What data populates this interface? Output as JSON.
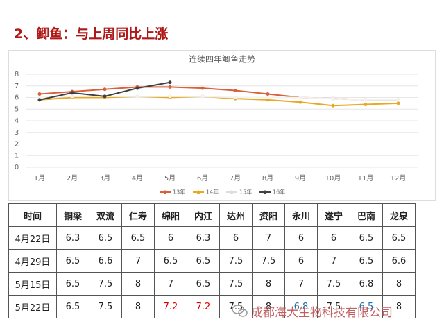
{
  "heading": "2、鲫鱼：与上周同比上涨",
  "chart_data": {
    "type": "line",
    "title": "连续四年鲫鱼走势",
    "categories": [
      "1月",
      "2月",
      "3月",
      "4月",
      "5月",
      "6月",
      "7月",
      "8月",
      "9月",
      "10月",
      "11月",
      "12月"
    ],
    "series": [
      {
        "name": "13年",
        "color": "#d9603b",
        "values": [
          6.3,
          6.5,
          6.7,
          6.9,
          6.9,
          6.8,
          6.6,
          6.3,
          6.0,
          5.9,
          5.8,
          5.8
        ]
      },
      {
        "name": "14年",
        "color": "#e8a820",
        "values": [
          5.8,
          6.0,
          6.0,
          6.1,
          6.0,
          6.1,
          5.9,
          5.8,
          5.6,
          5.3,
          5.4,
          5.5
        ]
      },
      {
        "name": "15年",
        "color": "#f2f2f2",
        "values": [
          6.0,
          6.1,
          6.1,
          6.1,
          6.1,
          6.1,
          6.0,
          6.0,
          6.0,
          5.9,
          5.8,
          5.8
        ]
      },
      {
        "name": "16年",
        "color": "#404040",
        "values": [
          5.8,
          6.4,
          6.1,
          6.8,
          7.3,
          null,
          null,
          null,
          null,
          null,
          null,
          null
        ]
      }
    ],
    "ylim": [
      0,
      8
    ],
    "yticks": [
      0,
      1,
      2,
      3,
      4,
      5,
      6,
      7,
      8
    ],
    "grid": true,
    "legend": "bottom"
  },
  "table": {
    "header": [
      "时间",
      "铜梁",
      "双流",
      "仁寿",
      "绵阳",
      "内江",
      "达州",
      "资阳",
      "永川",
      "遂宁",
      "巴南",
      "龙泉"
    ],
    "rows": [
      [
        "4月22日",
        6.3,
        6.5,
        6.5,
        6,
        6.3,
        6,
        7,
        6,
        6,
        6.5,
        6.5
      ],
      [
        "4月29日",
        6.5,
        6.6,
        7,
        6.5,
        6.5,
        7.5,
        7.5,
        6,
        7,
        6.5,
        6.6
      ],
      [
        "5月15日",
        6.5,
        7.5,
        8,
        7,
        6.5,
        7.5,
        8,
        7,
        7.5,
        6.8,
        8
      ],
      [
        "5月22日",
        6.5,
        7.5,
        8,
        7.2,
        7.2,
        7.5,
        8,
        6.8,
        7.5,
        6.5,
        8
      ]
    ],
    "highlights": [
      {
        "row": 3,
        "col": 4,
        "color": "#e00000"
      },
      {
        "row": 3,
        "col": 5,
        "color": "#e00000"
      },
      {
        "row": 3,
        "col": 8,
        "color": "#1f6fa8"
      },
      {
        "row": 3,
        "col": 10,
        "color": "#1f6fa8"
      }
    ]
  },
  "footer": "成都海大生物科技有限公司"
}
